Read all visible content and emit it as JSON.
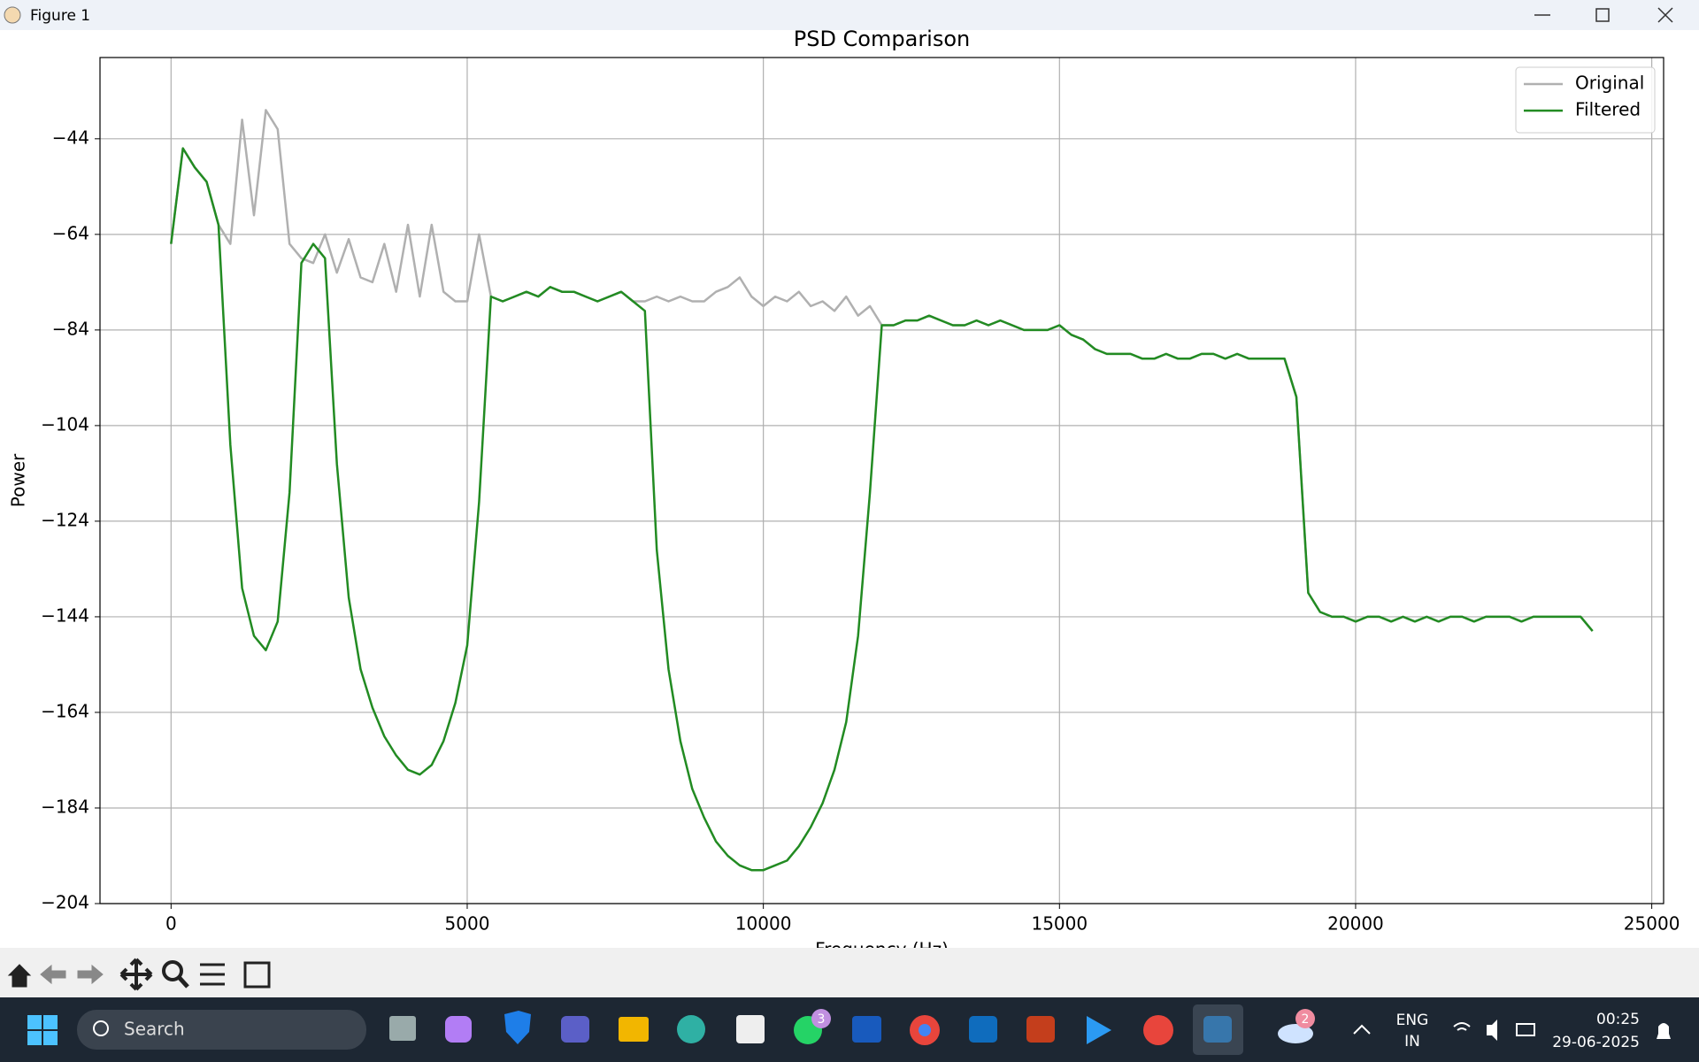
{
  "window": {
    "title": "Figure 1"
  },
  "chart_data": {
    "type": "line",
    "title": "PSD Comparison",
    "xlabel": "Frequency (Hz)",
    "ylabel": "Power",
    "x": [
      0,
      200,
      400,
      600,
      800,
      1000,
      1200,
      1400,
      1600,
      1800,
      2000,
      2200,
      2400,
      2600,
      2800,
      3000,
      3200,
      3400,
      3600,
      3800,
      4000,
      4200,
      4400,
      4600,
      4800,
      5000,
      5200,
      5400,
      5600,
      5800,
      6000,
      6200,
      6400,
      6600,
      6800,
      7000,
      7200,
      7400,
      7600,
      7800,
      8000,
      8200,
      8400,
      8600,
      8800,
      9000,
      9200,
      9400,
      9600,
      9800,
      10000,
      10200,
      10400,
      10600,
      10800,
      11000,
      11200,
      11400,
      11600,
      11800,
      12000,
      12200,
      12400,
      12600,
      12800,
      13000,
      13200,
      13400,
      13600,
      13800,
      14000,
      14200,
      14400,
      14600,
      14800,
      15000,
      15200,
      15400,
      15600,
      15800,
      16000,
      16200,
      16400,
      16600,
      16800,
      17000,
      17200,
      17400,
      17600,
      17800,
      18000,
      18200,
      18400,
      18600,
      18800,
      19000,
      19200,
      19400,
      19600,
      19800,
      20000,
      20200,
      20400,
      20600,
      20800,
      21000,
      21200,
      21400,
      21600,
      21800,
      22000,
      22200,
      22400,
      22600,
      22800,
      23000,
      23200,
      23400,
      23600,
      23800,
      24000
    ],
    "series": [
      {
        "name": "Original",
        "color": "#b0b0b0",
        "values": [
          -66,
          -46,
          -50,
          -53,
          -62,
          -66,
          -40,
          -60,
          -38,
          -42,
          -66,
          -69,
          -70,
          -64,
          -72,
          -65,
          -73,
          -74,
          -66,
          -76,
          -62,
          -77,
          -62,
          -76,
          -78,
          -78,
          -64,
          -77,
          -78,
          -77,
          -76,
          -77,
          -75,
          -76,
          -76,
          -77,
          -78,
          -77,
          -76,
          -78,
          -78,
          -77,
          -78,
          -77,
          -78,
          -78,
          -76,
          -75,
          -73,
          -77,
          -79,
          -77,
          -78,
          -76,
          -79,
          -78,
          -80,
          -77,
          -81,
          -79,
          -83,
          -83,
          -82,
          -82,
          -81,
          -82,
          -83,
          -83,
          -82,
          -83,
          -82,
          -83,
          -84,
          -84,
          -84,
          -83,
          -85,
          -86,
          -88,
          -89,
          -89,
          -89,
          -90,
          -90,
          -89,
          -90,
          -90,
          -89,
          -89,
          -90,
          -89,
          -90,
          -90,
          -90,
          -90,
          -98,
          -139,
          -143,
          -144,
          -144,
          -145,
          -144,
          -144,
          -145,
          -144,
          -145,
          -144,
          -145,
          -144,
          -144,
          -145,
          -144,
          -144,
          -144,
          -145,
          -144,
          -144,
          -144,
          -144,
          -144,
          -147
        ]
      },
      {
        "name": "Filtered",
        "color": "#228b22",
        "values": [
          -66,
          -46,
          -50,
          -53,
          -62,
          -108,
          -138,
          -148,
          -151,
          -145,
          -118,
          -70,
          -66,
          -69,
          -112,
          -140,
          -155,
          -163,
          -169,
          -173,
          -176,
          -177,
          -175,
          -170,
          -162,
          -150,
          -120,
          -77,
          -78,
          -77,
          -76,
          -77,
          -75,
          -76,
          -76,
          -77,
          -78,
          -77,
          -76,
          -78,
          -80,
          -130,
          -155,
          -170,
          -180,
          -186,
          -191,
          -194,
          -196,
          -197,
          -197,
          -196,
          -195,
          -192,
          -188,
          -183,
          -176,
          -166,
          -148,
          -118,
          -83,
          -83,
          -82,
          -82,
          -81,
          -82,
          -83,
          -83,
          -82,
          -83,
          -82,
          -83,
          -84,
          -84,
          -84,
          -83,
          -85,
          -86,
          -88,
          -89,
          -89,
          -89,
          -90,
          -90,
          -89,
          -90,
          -90,
          -89,
          -89,
          -90,
          -89,
          -90,
          -90,
          -90,
          -90,
          -98,
          -139,
          -143,
          -144,
          -144,
          -145,
          -144,
          -144,
          -145,
          -144,
          -145,
          -144,
          -145,
          -144,
          -144,
          -145,
          -144,
          -144,
          -144,
          -145,
          -144,
          -144,
          -144,
          -144,
          -144,
          -147
        ]
      }
    ],
    "xlim": [
      -1200,
      25200
    ],
    "ylim": [
      -204,
      -27
    ],
    "xticks": [
      0,
      5000,
      10000,
      15000,
      20000,
      25000
    ],
    "yticks": [
      {
        "value": -204,
        "label": "−204"
      },
      {
        "value": -184,
        "label": "−184"
      },
      {
        "value": -164,
        "label": "−164"
      },
      {
        "value": -144,
        "label": "−144"
      },
      {
        "value": -124,
        "label": "−124"
      },
      {
        "value": -104,
        "label": "−104"
      },
      {
        "value": -84,
        "label": "−84"
      },
      {
        "value": -64,
        "label": "−64"
      },
      {
        "value": -44,
        "label": "−44"
      }
    ],
    "grid": true,
    "legend": "upper right"
  },
  "taskbar": {
    "search": "Search",
    "badges": [
      3,
      2
    ],
    "language": "ENG",
    "region": "IN",
    "time": "00:25",
    "date": "29-06-2025"
  }
}
